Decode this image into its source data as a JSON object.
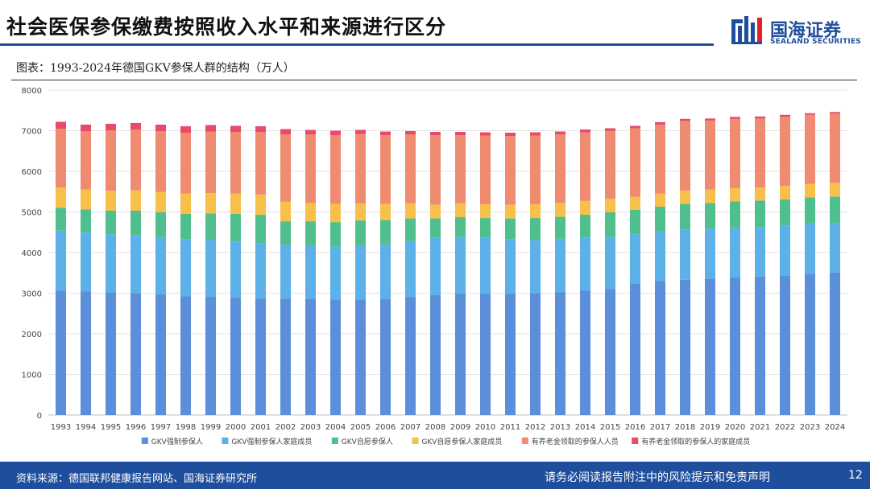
{
  "header": {
    "title": "社会医保参保缴费按照收入水平和来源进行区分",
    "brand_cn": "国海证券",
    "brand_en": "SEALAND SECURITIES"
  },
  "figure": {
    "caption": "图表：1993-2024年德国GKV参保人群的结构（万人）"
  },
  "footer": {
    "source": "资料来源：德国联邦健康报告网站、国海证券研究所",
    "disclaimer": "请务必阅读报告附注中的风险提示和免责声明",
    "page": "12"
  },
  "colors": {
    "brand_blue": "#1f4e9c",
    "accent_red": "#e0202a"
  },
  "chart_data": {
    "type": "bar",
    "stacked": true,
    "title": "1993-2024年德国GKV参保人群的结构（万人）",
    "xlabel": "",
    "ylabel": "",
    "ylim": [
      0,
      8000
    ],
    "yticks": [
      0,
      1000,
      2000,
      3000,
      4000,
      5000,
      6000,
      7000,
      8000
    ],
    "grid": true,
    "legend_position": "bottom",
    "categories": [
      "1993",
      "1994",
      "1995",
      "1996",
      "1997",
      "1998",
      "1999",
      "2000",
      "2001",
      "2002",
      "2003",
      "2004",
      "2005",
      "2006",
      "2007",
      "2008",
      "2009",
      "2010",
      "2011",
      "2012",
      "2013",
      "2014",
      "2015",
      "2016",
      "2017",
      "2018",
      "2019",
      "2020",
      "2021",
      "2022",
      "2023",
      "2024"
    ],
    "series": [
      {
        "name": "GKV强制参保人",
        "color": "#5b8fd9",
        "values": [
          3060,
          3040,
          3010,
          2990,
          2960,
          2920,
          2910,
          2890,
          2870,
          2860,
          2860,
          2840,
          2840,
          2850,
          2900,
          2950,
          2980,
          2980,
          2980,
          2990,
          3020,
          3060,
          3100,
          3240,
          3300,
          3330,
          3360,
          3390,
          3410,
          3440,
          3480,
          3510
        ]
      },
      {
        "name": "GKV强制参保人家庭成员",
        "color": "#5db0e8",
        "values": [
          1480,
          1450,
          1440,
          1440,
          1420,
          1410,
          1400,
          1380,
          1360,
          1330,
          1310,
          1310,
          1340,
          1350,
          1380,
          1410,
          1410,
          1380,
          1350,
          1320,
          1320,
          1310,
          1290,
          1210,
          1210,
          1230,
          1230,
          1220,
          1220,
          1230,
          1230,
          1210
        ]
      },
      {
        "name": "GKV自愿参保人",
        "color": "#4fc08d",
        "values": [
          560,
          570,
          580,
          600,
          610,
          620,
          650,
          680,
          700,
          580,
          600,
          600,
          610,
          600,
          560,
          480,
          480,
          490,
          510,
          540,
          540,
          560,
          600,
          600,
          620,
          640,
          630,
          650,
          650,
          640,
          650,
          660
        ]
      },
      {
        "name": "GKV自愿参保人家庭成员",
        "color": "#f7c04a",
        "values": [
          500,
          490,
          490,
          500,
          500,
          500,
          500,
          500,
          500,
          480,
          450,
          450,
          420,
          400,
          370,
          340,
          340,
          340,
          340,
          340,
          340,
          340,
          330,
          320,
          320,
          330,
          330,
          330,
          320,
          330,
          330,
          330
        ]
      },
      {
        "name": "有养老金领取的参保人人员",
        "color": "#ef8b71",
        "values": [
          1450,
          1440,
          1490,
          1500,
          1500,
          1500,
          1520,
          1520,
          1540,
          1660,
          1690,
          1690,
          1710,
          1690,
          1700,
          1710,
          1680,
          1690,
          1690,
          1690,
          1690,
          1690,
          1680,
          1690,
          1700,
          1710,
          1700,
          1700,
          1700,
          1700,
          1700,
          1710
        ]
      },
      {
        "name": "有养老金领取的参保人的家庭成员",
        "color": "#e84a6a",
        "values": [
          170,
          160,
          160,
          160,
          160,
          160,
          160,
          150,
          140,
          130,
          110,
          110,
          100,
          90,
          80,
          80,
          80,
          80,
          80,
          80,
          70,
          70,
          60,
          60,
          60,
          50,
          50,
          50,
          50,
          50,
          40,
          40
        ]
      }
    ]
  }
}
